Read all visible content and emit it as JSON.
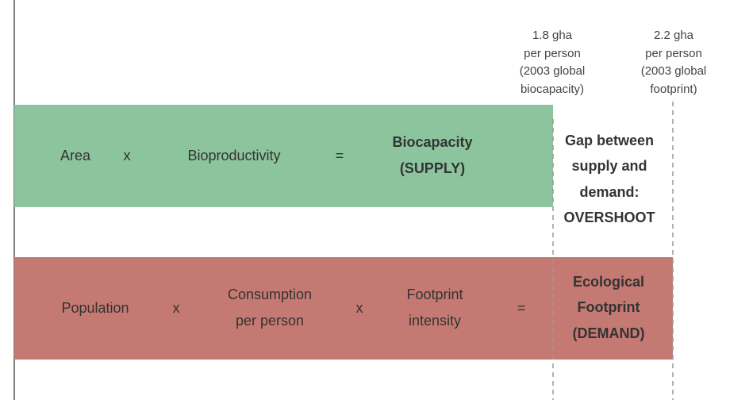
{
  "annotations": [
    {
      "lines": [
        "1.8 gha",
        "per person",
        "(2003 global",
        "biocapacity)"
      ]
    },
    {
      "lines": [
        "2.2 gha",
        "per person",
        "(2003 global",
        "footprint)"
      ]
    }
  ],
  "supply_row": {
    "terms": [
      "Area",
      "x",
      "Bioproductivity",
      "="
    ],
    "result": [
      "Biocapacity",
      "(SUPPLY)"
    ]
  },
  "gap": {
    "lines": [
      "Gap between",
      "supply and",
      "demand:",
      "OVERSHOOT"
    ]
  },
  "demand_row": {
    "terms": [
      [
        "Population"
      ],
      [
        "x"
      ],
      [
        "Consumption",
        "per person"
      ],
      [
        "x"
      ],
      [
        "Footprint",
        "intensity"
      ],
      [
        "="
      ]
    ],
    "result": [
      "Ecological",
      "Footprint",
      "(DEMAND)"
    ]
  }
}
